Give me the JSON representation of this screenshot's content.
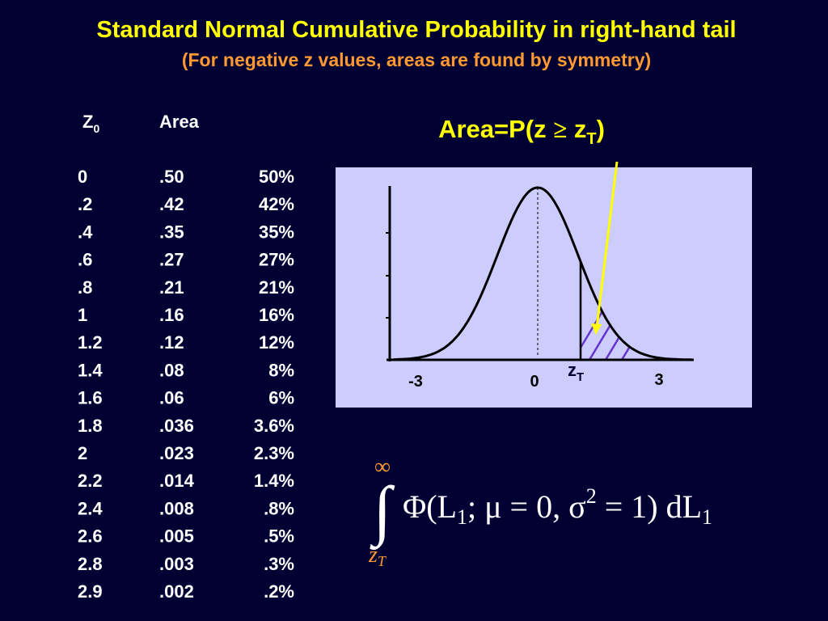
{
  "header": {
    "title": "Standard Normal Cumulative Probability in right-hand tail",
    "subtitle": "(For negative z values, areas are found by symmetry)"
  },
  "table": {
    "headers": {
      "z": "Z",
      "z_sub": "0",
      "area": "Area"
    },
    "rows": [
      [
        "0",
        ".50",
        "50%"
      ],
      [
        ".2",
        ".42",
        "42%"
      ],
      [
        ".4",
        ".35",
        "35%"
      ],
      [
        ".6",
        ".27",
        "27%"
      ],
      [
        ".8",
        ".21",
        "21%"
      ],
      [
        "1",
        ".16",
        "16%"
      ],
      [
        "1.2",
        ".12",
        "12%"
      ],
      [
        "1.4",
        ".08",
        "8%"
      ],
      [
        "1.6",
        ".06",
        "6%"
      ],
      [
        "1.8",
        ".036",
        "3.6%"
      ],
      [
        "2",
        ".023",
        "2.3%"
      ],
      [
        "2.2",
        ".014",
        "1.4%"
      ],
      [
        "2.4",
        ".008",
        ".8%"
      ],
      [
        "2.6",
        ".005",
        ".5%"
      ],
      [
        "2.8",
        ".003",
        ".3%"
      ],
      [
        "2.9",
        ".002",
        ".2%"
      ]
    ]
  },
  "diagram": {
    "label": {
      "pre": "Area=P(z ",
      "op": "≥",
      "z": " z",
      "sub": "T",
      "post": ")"
    },
    "axis_labels": {
      "left": "-3",
      "center": "0",
      "right": "3"
    },
    "marker": {
      "z": "z",
      "sub": "T"
    }
  },
  "formula": {
    "upper": "∞",
    "lower": {
      "z": "z",
      "sub": "T"
    },
    "integral": "∫",
    "body": {
      "a": "Φ(L",
      "a_sub": "1",
      "b": "; μ = 0, σ",
      "b_sup": "2",
      "c": " = 1) dL",
      "c_sub": "1"
    }
  }
}
